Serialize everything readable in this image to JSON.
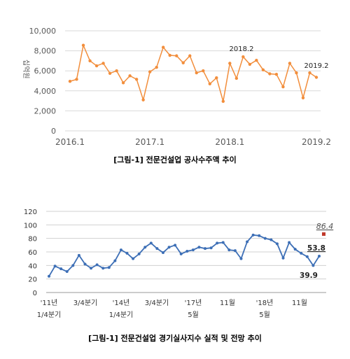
{
  "chart_data": [
    {
      "type": "line",
      "title": "",
      "ylabel": "십억원",
      "caption": "[그림-1] 전문건설업 공사수주액 추이",
      "ylim": [
        0,
        10000
      ],
      "yticks": [
        "0",
        "2,000",
        "4,000",
        "6,000",
        "8,000",
        "10,000"
      ],
      "xtick_labels": [
        "2016.1",
        "2017.1",
        "2018.1",
        "2019.2"
      ],
      "annotations": [
        "2018.2",
        "2019.2"
      ],
      "color": "#f28e3c",
      "grid": "horizontal",
      "series": [
        {
          "values": [
            4950,
            5150,
            8550,
            7000,
            6500,
            6750,
            5750,
            6000,
            4800,
            5500,
            5150,
            3100,
            5900,
            6350,
            8350,
            7550,
            7500,
            6800,
            7500,
            5800,
            6000,
            4700,
            5300,
            2950,
            6750,
            5250,
            7400,
            6650,
            7050,
            6100,
            5700,
            5650,
            4400,
            6750,
            5800,
            3300,
            5800,
            5350
          ]
        }
      ]
    },
    {
      "type": "line",
      "title": "",
      "caption": "[그림-1] 전문건설업 경기실사지수 실적 및 전망 추이",
      "ylim": [
        0,
        120
      ],
      "yticks": [
        "0",
        "20",
        "40",
        "60",
        "80",
        "100",
        "120"
      ],
      "xtick_labels_row1": [
        "'11년",
        "3/4분기",
        "'14년",
        "3/4분기",
        "'17년",
        "11월",
        "'18년",
        "11월"
      ],
      "xtick_labels_row2": [
        "1/4분기",
        "1/4분기",
        "5월",
        "5월"
      ],
      "annotations": [
        "53.8",
        "39.9"
      ],
      "forecast_label": "86.4",
      "forecast_value": 86.4,
      "color": "#3d6fb6",
      "forecast_color": "#c0392b",
      "grid": "horizontal",
      "series": [
        {
          "values": [
            24,
            39,
            35,
            31,
            40,
            55,
            42,
            36,
            41,
            36,
            37,
            47,
            63,
            58,
            50,
            57,
            67,
            73,
            65,
            59,
            67,
            70,
            57,
            61,
            63,
            67,
            65,
            66,
            73,
            74,
            63,
            62,
            50,
            75,
            85,
            84,
            80,
            78,
            72,
            51,
            74,
            64,
            58,
            53,
            39.9,
            53.8
          ]
        }
      ]
    }
  ]
}
